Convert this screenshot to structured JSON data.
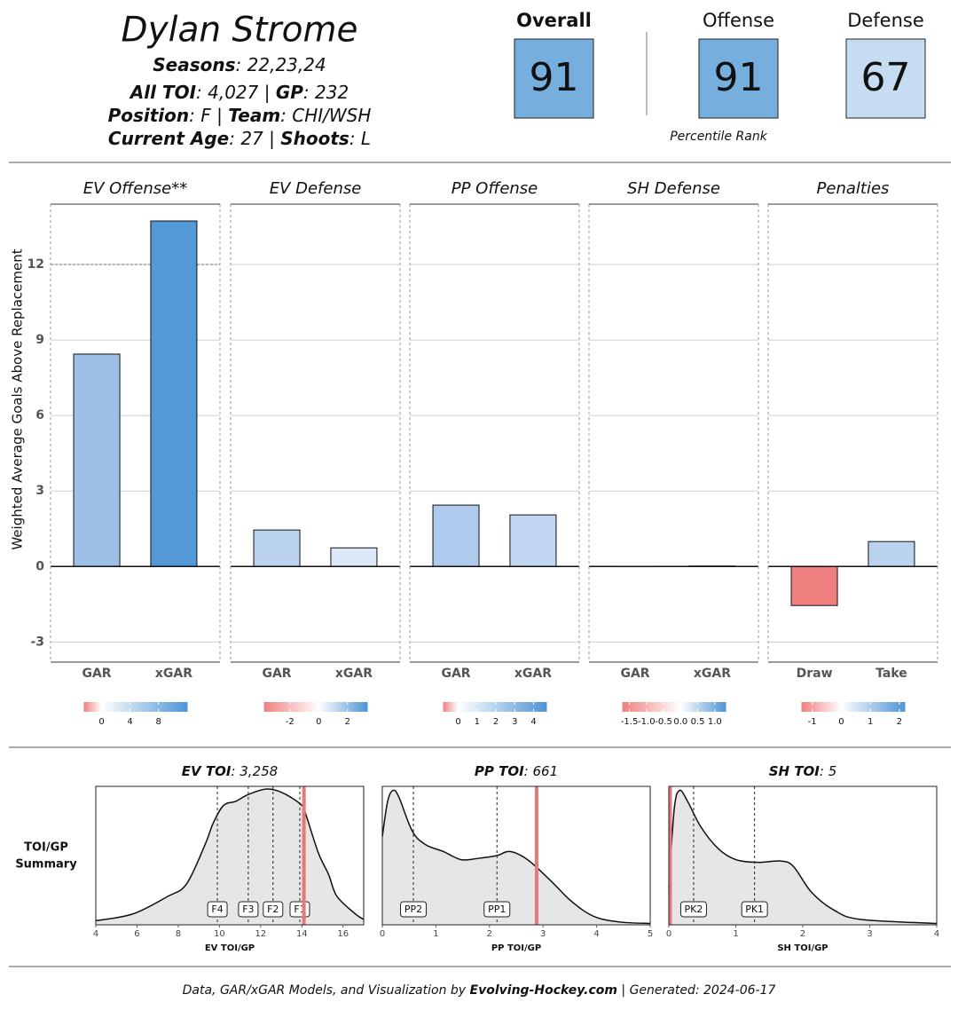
{
  "header": {
    "name": "Dylan Strome",
    "lines": [
      [
        {
          "text": "Seasons",
          "bold": true
        },
        {
          "text": ": 22,23,24"
        }
      ],
      [
        {
          "text": "All TOI",
          "bold": true
        },
        {
          "text": ": 4,027 | "
        },
        {
          "text": "GP",
          "bold": true
        },
        {
          "text": ": 232"
        }
      ],
      [
        {
          "text": "Position",
          "bold": true
        },
        {
          "text": ": F | "
        },
        {
          "text": "Team",
          "bold": true
        },
        {
          "text": ": CHI/WSH"
        }
      ],
      [
        {
          "text": "Current Age",
          "bold": true
        },
        {
          "text": ": 27 | "
        },
        {
          "text": "Shoots",
          "bold": true
        },
        {
          "text": ": L"
        }
      ]
    ]
  },
  "ratings": {
    "items": [
      {
        "label": "Overall",
        "value": 91,
        "color": "#76aede",
        "bold": true
      },
      {
        "label": "Offense",
        "value": 91,
        "color": "#76aede"
      },
      {
        "label": "Defense",
        "value": 67,
        "color": "#c6dcf2"
      }
    ],
    "caption": "Percentile Rank"
  },
  "chart_data": [
    {
      "type": "bar",
      "title": "EV Offense**",
      "categories": [
        "GAR",
        "xGAR"
      ],
      "values": [
        8.44,
        13.73
      ],
      "colors": [
        "#9dbfe8",
        "#5598d6"
      ],
      "ylim": [
        -3.8,
        14.4
      ],
      "yticks": [
        -3,
        0,
        3,
        6,
        9,
        12
      ],
      "y_label": "Weighted Average Goals Above Replacement",
      "reference_line": 12,
      "colorbar": {
        "lim": [
          -2.5,
          12.1
        ],
        "ticks": [
          0,
          4,
          8
        ],
        "colors": [
          "#f08080",
          "#ffffff",
          "#4f94d4"
        ]
      }
    },
    {
      "type": "bar",
      "title": "EV Defense",
      "categories": [
        "GAR",
        "xGAR"
      ],
      "values": [
        1.45,
        0.74
      ],
      "colors": [
        "#bcd3ef",
        "#dce8f7"
      ],
      "ylim": [
        -3.8,
        14.4
      ],
      "yticks": [
        -3,
        0,
        3,
        6,
        9,
        12
      ],
      "colorbar": {
        "lim": [
          -3.8,
          3.4
        ],
        "ticks": [
          -2,
          0,
          2
        ],
        "colors": [
          "#f08080",
          "#ffffff",
          "#4f94d4"
        ]
      }
    },
    {
      "type": "bar",
      "title": "PP Offense",
      "categories": [
        "GAR",
        "xGAR"
      ],
      "values": [
        2.44,
        2.05
      ],
      "colors": [
        "#aecbee",
        "#c2d7f2"
      ],
      "ylim": [
        -3.8,
        14.4
      ],
      "yticks": [
        -3,
        0,
        3,
        6,
        9,
        12
      ],
      "colorbar": {
        "lim": [
          -0.8,
          4.7
        ],
        "ticks": [
          0,
          1,
          2,
          3,
          4
        ],
        "colors": [
          "#f08080",
          "#ffffff",
          "#4f94d4"
        ]
      }
    },
    {
      "type": "bar",
      "title": "SH Defense",
      "categories": [
        "GAR",
        "xGAR"
      ],
      "values": [
        -0.01,
        0.02
      ],
      "colors": [
        "#fbefef",
        "#f4f8fd"
      ],
      "ylim": [
        -3.8,
        14.4
      ],
      "yticks": [
        -3,
        0,
        3,
        6,
        9,
        12
      ],
      "colorbar": {
        "lim": [
          -1.71,
          1.33
        ],
        "ticks": [
          -1.5,
          {
            "value": -1,
            "label": "-1.0"
          },
          -0.5,
          {
            "value": 0,
            "label": "0.0"
          },
          0.5,
          {
            "value": 1,
            "label": "1.0"
          }
        ],
        "colors": [
          "#f08080",
          "#ffffff",
          "#4f94d4"
        ]
      }
    },
    {
      "type": "bar",
      "title": "Penalties",
      "categories": [
        "Draw",
        "Take"
      ],
      "values": [
        -1.55,
        0.99
      ],
      "colors": [
        "#f08080",
        "#bcd3ef"
      ],
      "ylim": [
        -3.8,
        14.4
      ],
      "yticks": [
        -3,
        0,
        3,
        6,
        9,
        12
      ],
      "colorbar": {
        "lim": [
          -1.37,
          2.2
        ],
        "ticks": [
          -1,
          0,
          1,
          2
        ],
        "colors": [
          "#f08080",
          "#ffffff",
          "#4f94d4"
        ]
      }
    },
    {
      "type": "density",
      "title": [
        {
          "text": "EV TOI",
          "bold": true
        },
        {
          "text": ": 3,258"
        }
      ],
      "x_label": "EV TOI/GP",
      "xlim": [
        4,
        17
      ],
      "xticks": [
        4,
        6,
        8,
        10,
        12,
        14,
        16
      ],
      "ylim": [
        0,
        1.02
      ],
      "x": [
        4.0,
        5.8,
        7.5,
        8.4,
        9.3,
        9.7,
        10.2,
        10.8,
        11.4,
        12.3,
        13.1,
        14.0,
        14.2,
        14.8,
        15.3,
        15.7,
        16.6,
        17.0
      ],
      "y": [
        0.03,
        0.08,
        0.21,
        0.3,
        0.59,
        0.75,
        0.88,
        0.91,
        0.96,
        1.0,
        0.97,
        0.88,
        0.81,
        0.53,
        0.37,
        0.21,
        0.08,
        0.04
      ],
      "markers": {
        "labels": [
          "F4",
          "F3",
          "F2",
          "F1"
        ],
        "x": [
          9.9,
          11.4,
          12.6,
          13.9
        ]
      },
      "player_value": 14.1,
      "player_color": "#e8797a",
      "fill": "#e6e6e6"
    },
    {
      "type": "density",
      "title": [
        {
          "text": "PP TOI",
          "bold": true
        },
        {
          "text": ": 661"
        }
      ],
      "x_label": "PP TOI/GP",
      "xlim": [
        0,
        5
      ],
      "xticks": [
        0,
        1,
        2,
        3,
        4,
        5
      ],
      "ylim": [
        0,
        1.02
      ],
      "x": [
        0,
        0.1,
        0.2,
        0.31,
        0.56,
        0.81,
        1.14,
        1.47,
        1.8,
        2.14,
        2.38,
        2.71,
        3.13,
        3.54,
        3.96,
        4.45,
        5
      ],
      "y": [
        0.65,
        0.91,
        0.99,
        0.94,
        0.69,
        0.59,
        0.54,
        0.48,
        0.49,
        0.51,
        0.54,
        0.48,
        0.33,
        0.17,
        0.06,
        0.02,
        0.01
      ],
      "markers": {
        "labels": [
          "PP2",
          "PP1"
        ],
        "x": [
          0.58,
          2.14
        ]
      },
      "player_value": 2.88,
      "player_color": "#e8797a",
      "fill": "#e6e6e6"
    },
    {
      "type": "density",
      "title": [
        {
          "text": "SH TOI",
          "bold": true
        },
        {
          "text": ": 5"
        }
      ],
      "x_label": "SH TOI/GP",
      "xlim": [
        0,
        4
      ],
      "xticks": [
        0,
        1,
        2,
        3,
        4
      ],
      "ylim": [
        0,
        1.02
      ],
      "x": [
        0,
        0.08,
        0.16,
        0.28,
        0.48,
        0.74,
        1.0,
        1.34,
        1.67,
        1.86,
        2.13,
        2.46,
        2.86,
        4
      ],
      "y": [
        0.27,
        0.85,
        0.99,
        0.91,
        0.72,
        0.56,
        0.48,
        0.46,
        0.47,
        0.43,
        0.24,
        0.11,
        0.04,
        0.01
      ],
      "markers": {
        "labels": [
          "PK2",
          "PK1"
        ],
        "x": [
          0.37,
          1.28
        ]
      },
      "player_value": 0.02,
      "player_color": "#e8797a",
      "fill": "#e6e6e6"
    }
  ],
  "toi_label": [
    "TOI/GP",
    "Summary"
  ],
  "footer": [
    {
      "text": "Data, GAR/xGAR Models, and Visualization by "
    },
    {
      "text": "Evolving-Hockey.com",
      "bold": true
    },
    {
      "text": " | Generated: 2024-06-17"
    }
  ]
}
